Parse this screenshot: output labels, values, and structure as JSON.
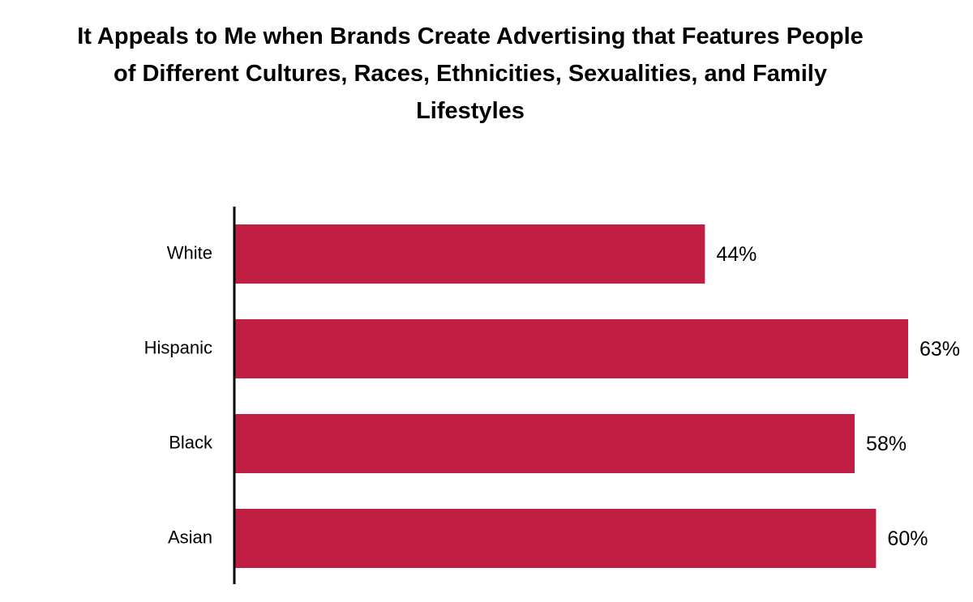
{
  "chart_data": {
    "type": "bar",
    "orientation": "horizontal",
    "title_lines": [
      "It Appeals to Me when Brands Create Advertising that Features People",
      "of Different Cultures, Races, Ethnicities, Sexualities, and Family",
      "Lifestyles"
    ],
    "categories": [
      "White",
      "Hispanic",
      "Black",
      "Asian"
    ],
    "values": [
      44,
      63,
      58,
      60
    ],
    "value_labels": [
      "44%",
      "63%",
      "58%",
      "60%"
    ],
    "unit": "%",
    "xlim": [
      0,
      63
    ],
    "grid": false,
    "legend": "none",
    "bar_color": "#c01f43",
    "axis_color": "#000000"
  }
}
